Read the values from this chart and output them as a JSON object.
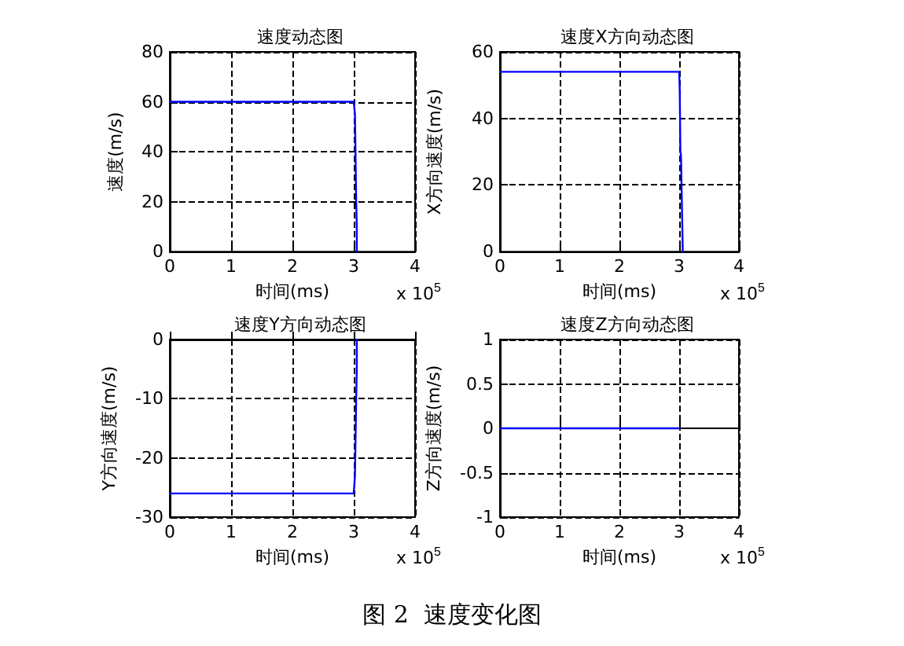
{
  "chart_data": [
    {
      "type": "line",
      "title": "速度动态图",
      "xlabel": "时间(ms)",
      "ylabel": "速度(m/s)",
      "annotations": [
        "x 10$^{5}$"
      ],
      "x": [
        0,
        3.0,
        3.02,
        3.04,
        3.05,
        3.05
      ],
      "series": [
        {
          "color": "#0000ff",
          "values": [
            60,
            60,
            55,
            20,
            10,
            0
          ]
        }
      ],
      "xlim": [
        0,
        4
      ],
      "xticks": [
        0,
        1,
        2,
        3,
        4
      ],
      "ylim": [
        0,
        80
      ],
      "yticks": [
        0,
        20,
        40,
        60,
        80
      ],
      "grid": true,
      "marker": "none",
      "line_style": "solid"
    },
    {
      "type": "line",
      "title": "速度X方向动态图",
      "xlabel": "时间(ms)",
      "ylabel": "X方向速度(m/s)",
      "annotations": [
        "x 10$^{5}$"
      ],
      "x": [
        0,
        3.0,
        3.01,
        3.02,
        3.03,
        3.05,
        3.06
      ],
      "series": [
        {
          "color": "#0000ff",
          "values": [
            54,
            54,
            48,
            30,
            29,
            10,
            0
          ]
        }
      ],
      "xlim": [
        0,
        4
      ],
      "xticks": [
        0,
        1,
        2,
        3,
        4
      ],
      "ylim": [
        0,
        60
      ],
      "yticks": [
        0,
        20,
        40,
        60
      ],
      "grid": true,
      "marker": "none",
      "line_style": "solid"
    },
    {
      "type": "line",
      "title": "速度Y方向动态图",
      "xlabel": "时间(ms)",
      "ylabel": "Y方向速度(m/s)",
      "annotations": [
        "x 10$^{5}$"
      ],
      "x": [
        0,
        3.0,
        3.02,
        3.04,
        3.05,
        3.05
      ],
      "series": [
        {
          "color": "#0000ff",
          "values": [
            -26,
            -26,
            -23,
            -10,
            -5,
            0
          ]
        }
      ],
      "xlim": [
        0,
        4
      ],
      "xticks": [
        0,
        1,
        2,
        3,
        4
      ],
      "ylim": [
        -30,
        0
      ],
      "yticks": [
        -30,
        -20,
        -10,
        0
      ],
      "grid": true,
      "marker": "none",
      "line_style": "solid"
    },
    {
      "type": "line",
      "title": "速度Z方向动态图",
      "xlabel": "时间(ms)",
      "ylabel": "Z方向速度(m/s)",
      "annotations": [
        "x 10$^{5}$",
        "图 2  速度变化图"
      ],
      "x": [
        0,
        3.0
      ],
      "series": [
        {
          "color": "#0000ff",
          "values": [
            0,
            0
          ]
        }
      ],
      "xlim": [
        0,
        4
      ],
      "xticks": [
        0,
        1,
        2,
        3,
        4
      ],
      "ylim": [
        -1,
        1
      ],
      "yticks": [
        -1,
        -0.5,
        0,
        0.5,
        1
      ],
      "grid": true,
      "marker": "none",
      "line_style": "solid"
    }
  ]
}
